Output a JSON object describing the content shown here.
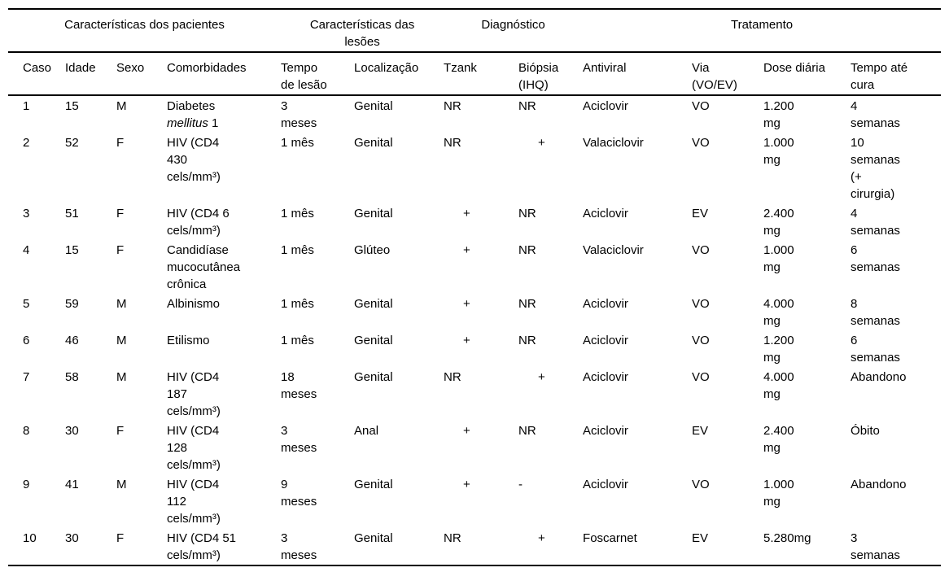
{
  "colors": {
    "background": "#ffffff",
    "text": "#000000",
    "rule": "#000000"
  },
  "table": {
    "group_headers": [
      {
        "label": "Características dos pacientes",
        "span": 4
      },
      {
        "label": "Características das\nlesões",
        "span": 2
      },
      {
        "label": "Diagnóstico",
        "span": 2
      },
      {
        "label": "Tratamento",
        "span": 4
      }
    ],
    "columns": [
      "Caso",
      "Idade",
      "Sexo",
      "Comorbidades",
      "Tempo\nde lesão",
      "Localização",
      "Tzank",
      "Biópsia\n(IHQ)",
      "Antiviral",
      "Via\n(VO/EV)",
      "Dose diária",
      "Tempo até\ncura"
    ],
    "column_keys": [
      "caso",
      "idade",
      "sexo",
      "comorbidades",
      "tempo-de-lesao",
      "localizacao",
      "tzank",
      "biopsia-ihq",
      "antiviral",
      "via",
      "dose-diaria",
      "tempo-ate-cura"
    ],
    "rows": [
      {
        "cells": [
          "1",
          "15",
          "M",
          [
            {
              "text": "Diabetes\n",
              "italic": false
            },
            {
              "text": "mellitus",
              "italic": true
            },
            {
              "text": " 1",
              "italic": false
            }
          ],
          "3\nmeses",
          "Genital",
          "NR",
          "NR",
          "Aciclovir",
          "VO",
          "1.200\nmg",
          "4\nsemanas"
        ]
      },
      {
        "cells": [
          "2",
          "52",
          "F",
          "HIV (CD4\n430\ncels/mm³)",
          "1 mês",
          "Genital",
          "NR",
          "+",
          "Valaciclovir",
          "VO",
          "1.000\nmg",
          "10\nsemanas\n(+\ncirurgia)"
        ]
      },
      {
        "cells": [
          "3",
          "51",
          "F",
          "HIV (CD4 6\ncels/mm³)",
          "1 mês",
          "Genital",
          "+",
          "NR",
          "Aciclovir",
          "EV",
          "2.400\nmg",
          "4\nsemanas"
        ]
      },
      {
        "cells": [
          "4",
          "15",
          "F",
          "Candidíase\nmucocutânea\ncrônica",
          "1 mês",
          "Glúteo",
          "+",
          "NR",
          "Valaciclovir",
          "VO",
          "1.000\nmg",
          "6\nsemanas"
        ]
      },
      {
        "cells": [
          "5",
          "59",
          "M",
          "Albinismo",
          "1 mês",
          "Genital",
          "+",
          "NR",
          "Aciclovir",
          "VO",
          "4.000\nmg",
          "8\nsemanas"
        ]
      },
      {
        "cells": [
          "6",
          "46",
          "M",
          "Etilismo",
          "1 mês",
          "Genital",
          "+",
          "NR",
          "Aciclovir",
          "VO",
          "1.200\nmg",
          "6\nsemanas"
        ]
      },
      {
        "cells": [
          "7",
          "58",
          "M",
          "HIV (CD4\n187\ncels/mm³)",
          "18\nmeses",
          "Genital",
          "NR",
          "+",
          "Aciclovir",
          "VO",
          "4.000\nmg",
          "Abandono"
        ]
      },
      {
        "cells": [
          "8",
          "30",
          "F",
          "HIV (CD4\n128\ncels/mm³)",
          "3\nmeses",
          "Anal",
          "+",
          "NR",
          "Aciclovir",
          "EV",
          "2.400\nmg",
          "Óbito"
        ]
      },
      {
        "cells": [
          "9",
          "41",
          "M",
          "HIV (CD4\n112\ncels/mm³)",
          "9\nmeses",
          "Genital",
          "+",
          "-",
          "Aciclovir",
          "VO",
          "1.000\nmg",
          "Abandono"
        ]
      },
      {
        "cells": [
          "10",
          "30",
          "F",
          "HIV (CD4 51\ncels/mm³)",
          "3\nmeses",
          "Genital",
          "NR",
          "+",
          "Foscarnet",
          "EV",
          "5.280mg",
          "3\nsemanas"
        ]
      }
    ]
  }
}
